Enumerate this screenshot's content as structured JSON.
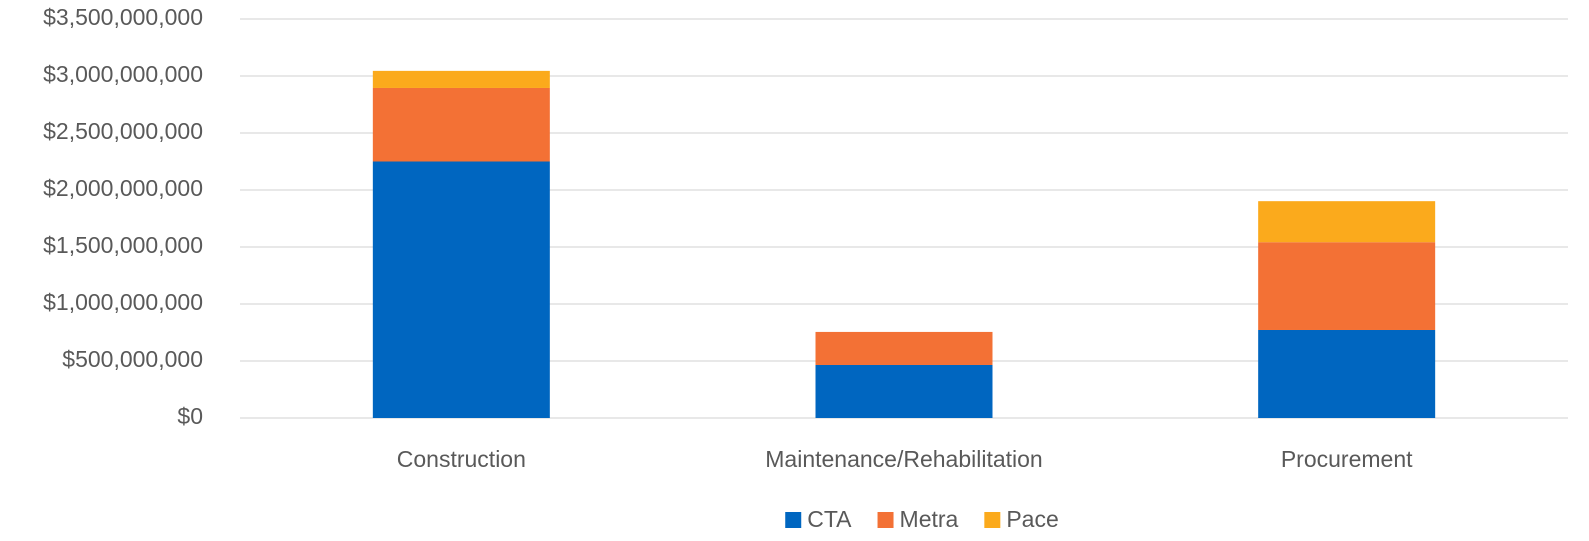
{
  "chart_data": {
    "type": "bar",
    "stacked": true,
    "categories": [
      "Construction",
      "Maintenance/Rehabilitation",
      "Procurement"
    ],
    "series": [
      {
        "name": "CTA",
        "color": "#0066c0",
        "values": [
          2250000000,
          465000000,
          772000000
        ]
      },
      {
        "name": "Metra",
        "color": "#f37135",
        "values": [
          645000000,
          290000000,
          770000000
        ]
      },
      {
        "name": "Pace",
        "color": "#fbaa1c",
        "values": [
          150000000,
          0,
          360000000
        ]
      }
    ],
    "ylim": [
      0,
      3500000000
    ],
    "yticks": [
      {
        "value": 0,
        "label": "$0"
      },
      {
        "value": 500000000,
        "label": "$500,000,000"
      },
      {
        "value": 1000000000,
        "label": "$1,000,000,000"
      },
      {
        "value": 1500000000,
        "label": "$1,500,000,000"
      },
      {
        "value": 2000000000,
        "label": "$2,000,000,000"
      },
      {
        "value": 2500000000,
        "label": "$2,500,000,000"
      },
      {
        "value": 3000000000,
        "label": "$3,000,000,000"
      },
      {
        "value": 3500000000,
        "label": "$3,500,000,000"
      }
    ],
    "grid": true,
    "legend": "bottom"
  }
}
